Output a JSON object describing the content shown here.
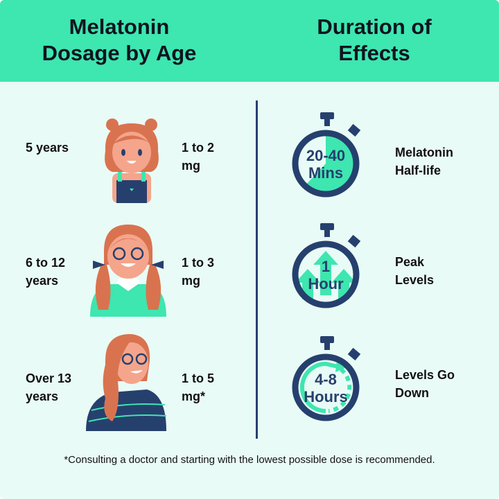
{
  "header": {
    "left_title": "Melatonin Dosage by Age",
    "left_title_line1": "Melatonin",
    "left_title_line2": "Dosage by Age",
    "right_title_line1": "Duration of",
    "right_title_line2": "Effects"
  },
  "dosage": [
    {
      "age_line1": "5 years",
      "age_line2": "",
      "dose_line1": "1 to 2",
      "dose_line2": "mg",
      "illustration": "young-girl-avatar"
    },
    {
      "age_line1": "6 to 12",
      "age_line2": "years",
      "dose_line1": "1 to 3",
      "dose_line2": "mg",
      "illustration": "girl-with-glasses-pigtails-avatar"
    },
    {
      "age_line1": "Over 13",
      "age_line2": "years",
      "dose_line1": "1 to 5",
      "dose_line2": "mg*",
      "illustration": "teen-girl-with-glasses-avatar"
    }
  ],
  "effects": [
    {
      "time_line1": "20-40",
      "time_line2": "Mins",
      "label_line1": "Melatonin",
      "label_line2": "Half-life",
      "icon": "stopwatch-pie-icon"
    },
    {
      "time_line1": "1",
      "time_line2": "Hour",
      "label_line1": "Peak",
      "label_line2": "Levels",
      "icon": "stopwatch-arrows-up-icon"
    },
    {
      "time_line1": "4-8",
      "time_line2": "Hours",
      "label_line1": "Levels Go",
      "label_line2": "Down",
      "icon": "stopwatch-circular-arrow-icon"
    }
  ],
  "footer": "*Consulting a doctor and starting with the lowest possible dose is recommended.",
  "colors": {
    "header_green": "#3ee6b0",
    "background": "#e9fbf6",
    "navy": "#26406e",
    "hair": "#d9734f",
    "skin": "#f4a58c"
  }
}
